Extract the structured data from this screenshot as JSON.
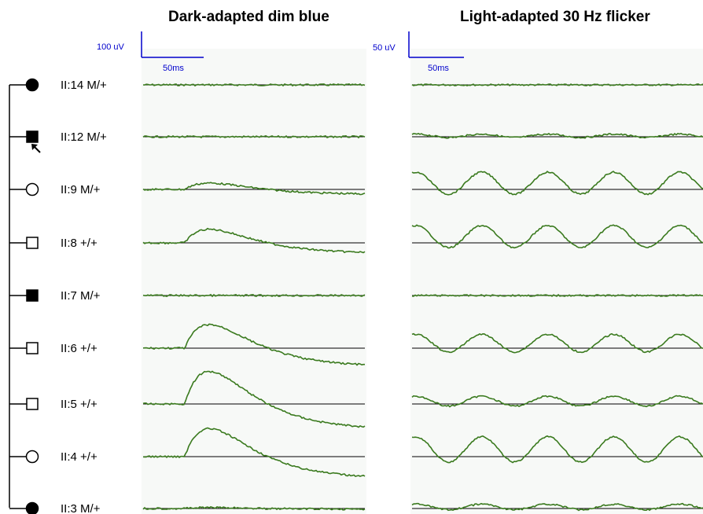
{
  "panels": [
    {
      "title": "Dark-adapted dim blue",
      "scale_amplitude": "100 uV",
      "scale_time": "50ms",
      "kind": "dark"
    },
    {
      "title": "Light-adapted 30 Hz flicker",
      "scale_amplitude": "50 uV",
      "scale_time": "50ms",
      "kind": "flicker"
    }
  ],
  "subjects": [
    {
      "id": "II:14",
      "genotype": "M/+",
      "sex": "female",
      "affected": true,
      "dark_amplitude": 0.0,
      "flicker_amplitude": 0.0
    },
    {
      "id": "II:12",
      "genotype": "M/+",
      "sex": "male",
      "affected": true,
      "proband": true,
      "dark_amplitude": 0.0,
      "flicker_amplitude": 0.15
    },
    {
      "id": "II:9",
      "genotype": "M/+",
      "sex": "female",
      "affected": false,
      "dark_amplitude": 0.35,
      "flicker_amplitude": 1.0
    },
    {
      "id": "II:8",
      "genotype": "+/+",
      "sex": "male",
      "affected": false,
      "dark_amplitude": 0.75,
      "flicker_amplitude": 1.0
    },
    {
      "id": "II:7",
      "genotype": "M/+",
      "sex": "male",
      "affected": true,
      "dark_amplitude": 0.0,
      "flicker_amplitude": 0.0
    },
    {
      "id": "II:6",
      "genotype": "+/+",
      "sex": "male",
      "affected": false,
      "dark_amplitude": 1.3,
      "flicker_amplitude": 0.8
    },
    {
      "id": "II:5",
      "genotype": "+/+",
      "sex": "male",
      "affected": false,
      "dark_amplitude": 1.8,
      "flicker_amplitude": 0.45
    },
    {
      "id": "II:4",
      "genotype": "+/+",
      "sex": "female",
      "affected": false,
      "dark_amplitude": 1.55,
      "flicker_amplitude": 1.15
    },
    {
      "id": "II:3",
      "genotype": "M/+",
      "sex": "female",
      "affected": true,
      "dark_amplitude": 0.05,
      "flicker_amplitude": 0.25
    }
  ],
  "colors": {
    "trace": "#3a7a1e",
    "scale_bar": "#0000cc",
    "baseline": "#000000",
    "affected": "#000000",
    "unaffected": "#ffffff"
  }
}
